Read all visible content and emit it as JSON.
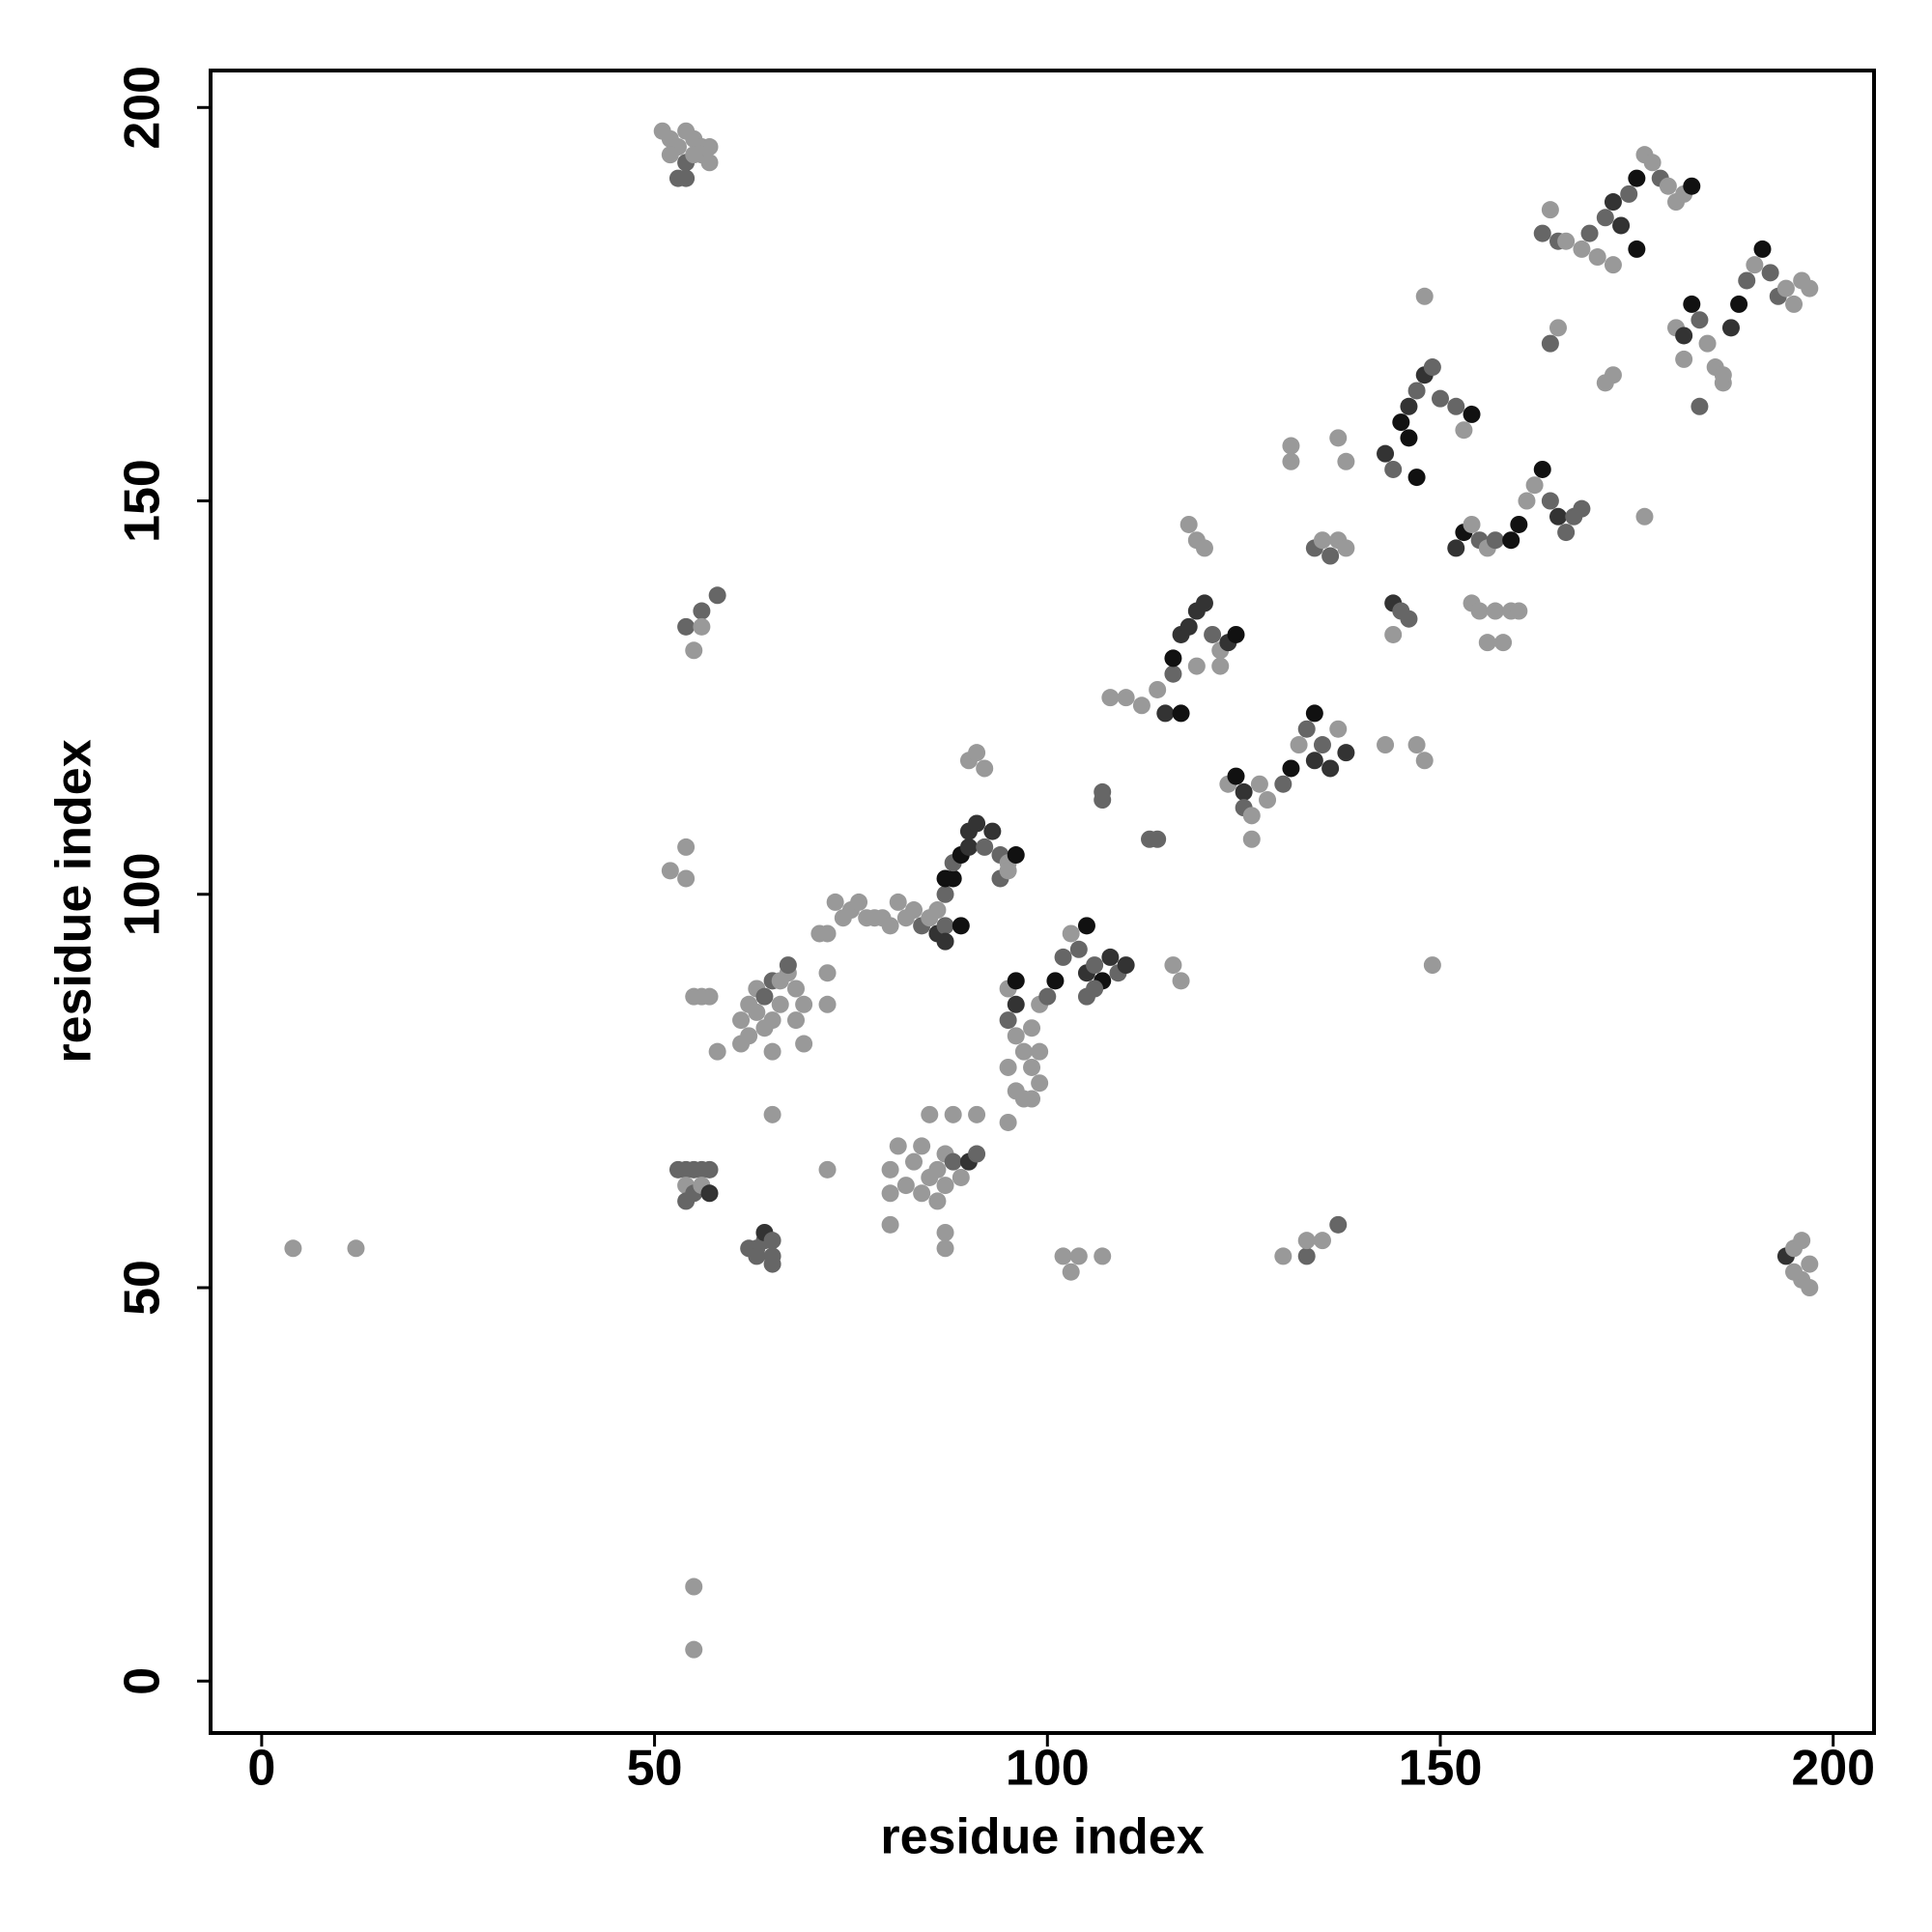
{
  "chart_data": {
    "type": "scatter",
    "xlabel": "residue index",
    "ylabel": "residue index",
    "xlim": [
      -6.5,
      205.2
    ],
    "ylim": [
      -6.6,
      204.7
    ],
    "xticks": [
      0,
      50,
      100,
      150,
      200
    ],
    "yticks": [
      0,
      50,
      100,
      150,
      200
    ],
    "grid": false,
    "x": [
      4,
      12,
      55,
      55,
      51,
      52,
      53,
      54,
      55,
      56,
      57,
      52,
      54,
      56,
      53,
      54,
      55,
      57,
      54,
      56,
      58,
      55,
      56,
      52,
      54,
      54,
      55,
      56,
      57,
      58,
      53,
      54,
      55,
      56,
      57,
      54,
      55,
      56,
      57,
      54,
      62,
      63,
      64,
      64,
      65,
      65,
      65,
      63,
      61,
      61,
      62,
      62,
      63,
      63,
      64,
      64,
      65,
      65,
      65,
      66,
      66,
      67,
      67,
      68,
      68,
      69,
      69,
      72,
      72,
      71,
      65,
      72,
      72,
      73,
      74,
      75,
      76,
      77,
      78,
      79,
      80,
      81,
      82,
      83,
      84,
      85,
      86,
      86,
      87,
      87,
      89,
      87,
      88,
      87,
      88,
      89,
      90,
      90,
      91,
      92,
      93,
      94,
      95,
      96,
      94,
      95,
      90,
      91,
      92,
      80,
      80,
      80,
      81,
      82,
      83,
      84,
      84,
      85,
      86,
      86,
      87,
      87,
      88,
      88,
      89,
      90,
      91,
      91,
      85,
      87,
      87,
      95,
      96,
      95,
      96,
      97,
      98,
      95,
      96,
      97,
      98,
      99,
      99,
      98,
      99,
      95,
      96,
      100,
      101,
      102,
      103,
      104,
      105,
      105,
      106,
      107,
      108,
      109,
      110,
      106,
      105,
      102,
      103,
      104,
      107,
      107,
      107,
      113,
      114,
      108,
      110,
      112,
      114,
      115,
      116,
      117,
      116,
      117,
      118,
      119,
      120,
      121,
      122,
      123,
      124,
      119,
      122,
      118,
      119,
      120,
      116,
      117,
      123,
      124,
      125,
      125,
      126,
      126,
      127,
      128,
      130,
      131,
      132,
      133,
      134,
      134,
      135,
      136,
      137,
      138,
      131,
      131,
      134,
      135,
      136,
      137,
      138,
      137,
      138,
      130,
      133,
      133,
      135,
      137,
      143,
      144,
      145,
      146,
      147,
      146,
      147,
      148,
      149,
      150,
      152,
      154,
      153,
      148,
      144,
      145,
      146,
      144,
      143,
      147,
      148,
      149,
      152,
      153,
      154,
      155,
      156,
      157,
      159,
      160,
      161,
      162,
      163,
      164,
      165,
      166,
      167,
      168,
      154,
      155,
      156,
      157,
      158,
      159,
      160,
      163,
      164,
      165,
      166,
      168,
      169,
      170,
      171,
      172,
      173,
      174,
      175,
      176,
      177,
      178,
      179,
      180,
      181,
      182,
      175,
      172,
      165,
      164,
      171,
      172,
      176,
      180,
      181,
      182,
      183,
      184,
      185,
      186,
      187,
      188,
      189,
      190,
      191,
      192,
      193,
      194,
      195,
      196,
      197,
      183,
      186,
      181,
      194,
      195,
      196,
      197,
      196,
      197,
      195
    ],
    "values": [
      55,
      55,
      12,
      4,
      197,
      196,
      195,
      197,
      196,
      195,
      195,
      194,
      193,
      194,
      191,
      191,
      194,
      193,
      134,
      136,
      138,
      131,
      134,
      103,
      102,
      106,
      87,
      87,
      87,
      80,
      65,
      65,
      65,
      65,
      65,
      63,
      62,
      63,
      62,
      61,
      55,
      55,
      56,
      57,
      56,
      54,
      53,
      54,
      81,
      84,
      82,
      86,
      85,
      88,
      83,
      87,
      84,
      89,
      80,
      86,
      89,
      90,
      91,
      84,
      88,
      81,
      86,
      86,
      90,
      95,
      72,
      65,
      95,
      99,
      97,
      98,
      99,
      97,
      97,
      97,
      96,
      99,
      97,
      98,
      96,
      97,
      98,
      95,
      96,
      94,
      96,
      100,
      102,
      102,
      104,
      105,
      106,
      108,
      109,
      106,
      108,
      105,
      104,
      105,
      102,
      103,
      117,
      118,
      116,
      58,
      62,
      65,
      68,
      63,
      66,
      62,
      68,
      64,
      61,
      65,
      63,
      67,
      66,
      72,
      64,
      66,
      67,
      72,
      72,
      55,
      57,
      88,
      86,
      84,
      82,
      80,
      78,
      78,
      75,
      74,
      74,
      76,
      80,
      83,
      86,
      71,
      89,
      87,
      89,
      92,
      95,
      93,
      96,
      90,
      91,
      89,
      92,
      90,
      91,
      88,
      87,
      54,
      52,
      54,
      54,
      113,
      112,
      107,
      107,
      125,
      125,
      124,
      126,
      123,
      128,
      123,
      130,
      133,
      134,
      136,
      137,
      133,
      131,
      132,
      133,
      129,
      129,
      147,
      145,
      144,
      91,
      89,
      114,
      115,
      113,
      111,
      110,
      107,
      114,
      112,
      114,
      116,
      119,
      121,
      123,
      117,
      119,
      116,
      121,
      118,
      157,
      155,
      144,
      145,
      143,
      145,
      144,
      158,
      155,
      54,
      54,
      56,
      56,
      58,
      156,
      154,
      160,
      158,
      153,
      162,
      164,
      166,
      167,
      163,
      162,
      161,
      159,
      176,
      137,
      136,
      135,
      133,
      119,
      119,
      117,
      91,
      144,
      146,
      147,
      145,
      144,
      145,
      145,
      147,
      150,
      152,
      154,
      150,
      148,
      146,
      148,
      149,
      137,
      136,
      132,
      136,
      132,
      136,
      136,
      184,
      187,
      183,
      183,
      182,
      184,
      181,
      186,
      188,
      185,
      189,
      191,
      194,
      193,
      191,
      190,
      188,
      189,
      190,
      182,
      180,
      172,
      170,
      165,
      166,
      148,
      172,
      171,
      175,
      173,
      170,
      167,
      165,
      172,
      175,
      178,
      180,
      182,
      179,
      176,
      177,
      175,
      178,
      177,
      162,
      166,
      168,
      54,
      55,
      56,
      53,
      51,
      50,
      52
    ],
    "colors": [
      "#999",
      "#999",
      "#999",
      "#999",
      "#999",
      "#999",
      "#999",
      "#999",
      "#999",
      "#999",
      "#999",
      "#999",
      "#666",
      "#999",
      "#666",
      "#666",
      "#999",
      "#999",
      "#666",
      "#666",
      "#666",
      "#999",
      "#999",
      "#999",
      "#999",
      "#999",
      "#999",
      "#999",
      "#999",
      "#999",
      "#666",
      "#666",
      "#666",
      "#666",
      "#666",
      "#999",
      "#666",
      "#999",
      "#333",
      "#666",
      "#666",
      "#666",
      "#666",
      "#333",
      "#666",
      "#666",
      "#666",
      "#666",
      "#999",
      "#999",
      "#999",
      "#999",
      "#999",
      "#999",
      "#999",
      "#666",
      "#999",
      "#666",
      "#999",
      "#999",
      "#999",
      "#999",
      "#666",
      "#999",
      "#999",
      "#999",
      "#999",
      "#999",
      "#999",
      "#999",
      "#999",
      "#999",
      "#999",
      "#999",
      "#999",
      "#999",
      "#999",
      "#999",
      "#999",
      "#999",
      "#999",
      "#999",
      "#999",
      "#999",
      "#666",
      "#999",
      "#999",
      "#333",
      "#666",
      "#333",
      "#111",
      "#666",
      "#111",
      "#111",
      "#666",
      "#111",
      "#333",
      "#333",
      "#333",
      "#666",
      "#333",
      "#666",
      "#999",
      "#111",
      "#666",
      "#999",
      "#999",
      "#999",
      "#999",
      "#999",
      "#999",
      "#999",
      "#999",
      "#999",
      "#999",
      "#999",
      "#999",
      "#999",
      "#999",
      "#999",
      "#999",
      "#999",
      "#666",
      "#999",
      "#999",
      "#333",
      "#666",
      "#999",
      "#999",
      "#999",
      "#999",
      "#999",
      "#333",
      "#666",
      "#999",
      "#999",
      "#999",
      "#999",
      "#999",
      "#999",
      "#999",
      "#999",
      "#999",
      "#999",
      "#999",
      "#999",
      "#111",
      "#666",
      "#111",
      "#666",
      "#999",
      "#666",
      "#111",
      "#333",
      "#666",
      "#111",
      "#333",
      "#666",
      "#333",
      "#666",
      "#666",
      "#999",
      "#999",
      "#999",
      "#999",
      "#666",
      "#666",
      "#666",
      "#666",
      "#999",
      "#999",
      "#999",
      "#999",
      "#333",
      "#666",
      "#111",
      "#111",
      "#333",
      "#333",
      "#333",
      "#333",
      "#666",
      "#999",
      "#333",
      "#111",
      "#999",
      "#999",
      "#999",
      "#999",
      "#999",
      "#999",
      "#999",
      "#999",
      "#111",
      "#333",
      "#666",
      "#999",
      "#999",
      "#999",
      "#999",
      "#666",
      "#111",
      "#999",
      "#666",
      "#111",
      "#333",
      "#666",
      "#333",
      "#999",
      "#333",
      "#999",
      "#999",
      "#666",
      "#999",
      "#666",
      "#999",
      "#999",
      "#999",
      "#999",
      "#999",
      "#666",
      "#999",
      "#999",
      "#666",
      "#333",
      "#666",
      "#111",
      "#111",
      "#111",
      "#333",
      "#666",
      "#333",
      "#666",
      "#666",
      "#666",
      "#111",
      "#999",
      "#999",
      "#333",
      "#666",
      "#666",
      "#999",
      "#999",
      "#999",
      "#999",
      "#999",
      "#333",
      "#111",
      "#999",
      "#666",
      "#999",
      "#666",
      "#111",
      "#111",
      "#999",
      "#999",
      "#111",
      "#666",
      "#333",
      "#666",
      "#666",
      "#666",
      "#999",
      "#999",
      "#999",
      "#999",
      "#999",
      "#999",
      "#999",
      "#666",
      "#999",
      "#666",
      "#999",
      "#999",
      "#666",
      "#999",
      "#666",
      "#333",
      "#333",
      "#666",
      "#111",
      "#999",
      "#999",
      "#666",
      "#999",
      "#999",
      "#999",
      "#111",
      "#111",
      "#999",
      "#999",
      "#666",
      "#999",
      "#999",
      "#999",
      "#999",
      "#333",
      "#111",
      "#666",
      "#999",
      "#999",
      "#999",
      "#333",
      "#111",
      "#666",
      "#999",
      "#111",
      "#666",
      "#666",
      "#999",
      "#999",
      "#999",
      "#999",
      "#666",
      "#999",
      "#999",
      "#333",
      "#999",
      "#999",
      "#999",
      "#999",
      "#999",
      "#999"
    ]
  }
}
